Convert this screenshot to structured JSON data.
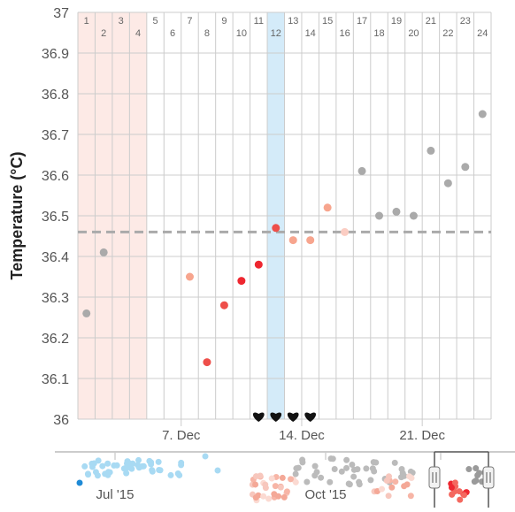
{
  "chart_data": {
    "type": "scatter",
    "ylabel": "Temperature (°C)",
    "ylim": [
      36,
      37
    ],
    "y_ticks": [
      "36",
      "36.1",
      "36.2",
      "36.3",
      "36.4",
      "36.5",
      "36.6",
      "36.7",
      "36.8",
      "36.9",
      "37"
    ],
    "cycle_day_labels": [
      "1",
      "2",
      "3",
      "4",
      "5",
      "6",
      "7",
      "8",
      "9",
      "10",
      "11",
      "12",
      "13",
      "14",
      "15",
      "16",
      "17",
      "18",
      "19",
      "20",
      "21",
      "22",
      "23",
      "24"
    ],
    "x_date_ticks": [
      {
        "label": "7. Dec",
        "day": 6.5
      },
      {
        "label": "14. Dec",
        "day": 13.5
      },
      {
        "label": "21. Dec",
        "day": 20.5
      }
    ],
    "shaded_periods": [
      {
        "kind": "period",
        "start_day": 1,
        "end_day": 4,
        "color": "#fdeae6"
      },
      {
        "kind": "ovulation",
        "start_day": 12,
        "end_day": 12,
        "color": "#d4ebf9"
      }
    ],
    "coverline": 36.46,
    "points": [
      {
        "day": 1,
        "temp": 36.26,
        "color": "#aaaaaa"
      },
      {
        "day": 2,
        "temp": 36.41,
        "color": "#aaaaaa"
      },
      {
        "day": 7,
        "temp": 36.35,
        "color": "#f7a58e"
      },
      {
        "day": 8,
        "temp": 36.14,
        "color": "#ee4f4a"
      },
      {
        "day": 9,
        "temp": 36.28,
        "color": "#ee4f4a"
      },
      {
        "day": 10,
        "temp": 36.34,
        "color": "#ee2730"
      },
      {
        "day": 11,
        "temp": 36.38,
        "color": "#ee2730"
      },
      {
        "day": 12,
        "temp": 36.47,
        "color": "#ee4f4a"
      },
      {
        "day": 13,
        "temp": 36.44,
        "color": "#f7a58e"
      },
      {
        "day": 14,
        "temp": 36.44,
        "color": "#f7a58e"
      },
      {
        "day": 15,
        "temp": 36.52,
        "color": "#f7a58e"
      },
      {
        "day": 16,
        "temp": 36.46,
        "color": "#fbcdc3"
      },
      {
        "day": 17,
        "temp": 36.61,
        "color": "#aaaaaa"
      },
      {
        "day": 18,
        "temp": 36.5,
        "color": "#aaaaaa"
      },
      {
        "day": 19,
        "temp": 36.51,
        "color": "#aaaaaa"
      },
      {
        "day": 20,
        "temp": 36.5,
        "color": "#aaaaaa"
      },
      {
        "day": 21,
        "temp": 36.66,
        "color": "#aaaaaa"
      },
      {
        "day": 22,
        "temp": 36.58,
        "color": "#aaaaaa"
      },
      {
        "day": 23,
        "temp": 36.62,
        "color": "#aaaaaa"
      },
      {
        "day": 24,
        "temp": 36.75,
        "color": "#aaaaaa"
      }
    ],
    "intercourse_days": [
      11,
      12,
      13,
      14
    ],
    "grid": true
  },
  "navigator": {
    "labels": [
      "Jul '15",
      "Oct '15"
    ]
  },
  "icons": {
    "intercourse": "heart-icon",
    "handle": "grip-handle-icon"
  },
  "colors": {
    "grid": "#cccccc",
    "coverline": "#aaaaaa",
    "axis_text": "#555555",
    "y_title": "#222222",
    "day_text": "#666666",
    "navigator_blue": "#a8daf3",
    "navigator_red": "#ee2730",
    "navigator_gray": "#bbbbbb"
  }
}
